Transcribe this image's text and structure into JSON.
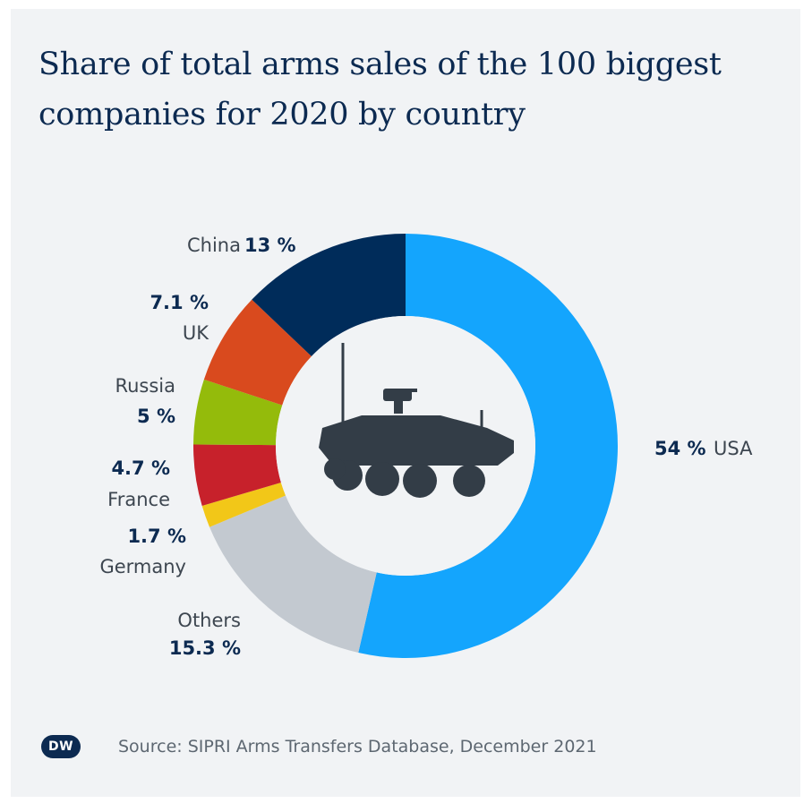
{
  "chart_data": {
    "type": "pie",
    "style": "donut",
    "title": "Share of total arms sales of the 100 biggest companies for 2020 by country",
    "unit": "%",
    "categories": [
      "USA",
      "Others",
      "Germany",
      "France",
      "Russia",
      "UK",
      "China"
    ],
    "values": [
      54,
      15.3,
      1.7,
      4.7,
      5,
      7.1,
      13
    ],
    "value_labels": [
      "54 %",
      "15.3 %",
      "1.7 %",
      "4.7 %",
      "5 %",
      "7.1 %",
      "13 %"
    ],
    "colors": [
      "#14a5fd",
      "#c3c9d0",
      "#f2c718",
      "#c7212b",
      "#94bb0b",
      "#d94a1e",
      "#002c5a"
    ],
    "center_icon": "armored-vehicle-icon"
  },
  "source": "Source: SIPRI Arms Transfers Database, December 2021",
  "logo": {
    "text": "DW",
    "color": "#0c2a51"
  }
}
